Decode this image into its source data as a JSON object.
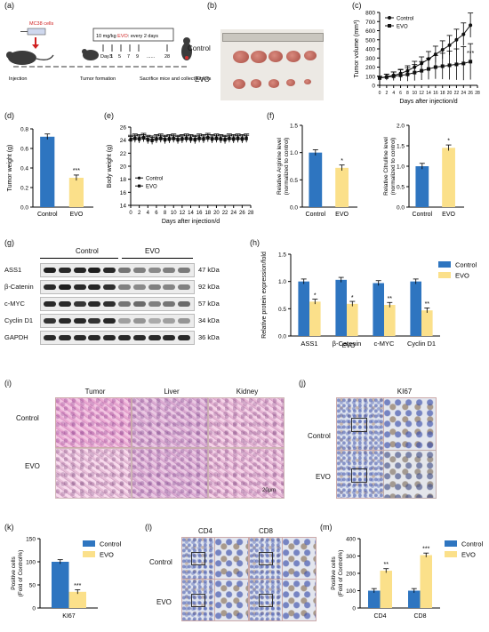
{
  "panel_labels": {
    "a": "(a)",
    "b": "(b)",
    "c": "(c)",
    "d": "(d)",
    "e": "(e)",
    "f": "(f)",
    "g": "(g)",
    "h": "(h)",
    "i": "(i)",
    "j": "(j)",
    "k": "(k)",
    "l": "(l)",
    "m": "(m)"
  },
  "schematic": {
    "cell_label": "MC38 cells",
    "dose_text_pre": "10 mg/kg",
    "dose_text_evo": "EVO",
    "dose_text_post": ": every 2 days",
    "days": [
      "Day 1",
      "3",
      "5",
      "7",
      "9",
      "......",
      "28"
    ],
    "injection": "Injection",
    "tumor_formation": "Tumor formation",
    "sacrifice": "Sacrifice mice and collect tumors"
  },
  "tumor_photo": {
    "control": "Control",
    "evo": "EVO"
  },
  "western": {
    "groups": [
      "Control",
      "EVO"
    ],
    "proteins": [
      "ASS1",
      "β-Catenin",
      "c-MYC",
      "Cyclin D1",
      "GAPDH"
    ],
    "sizes": [
      "47 kDa",
      "92 kDa",
      "57 kDa",
      "34 kDa",
      "36 kDa"
    ]
  },
  "histology": {
    "columns": [
      "Tumor",
      "Liver",
      "Kidney"
    ],
    "rows": [
      "Control",
      "EVO"
    ],
    "scale": "20μm"
  },
  "ki67_ihc": {
    "title": "KI67",
    "rows": [
      "Control",
      "EVO"
    ]
  },
  "cd_ihc": {
    "columns": [
      "CD4",
      "CD8"
    ],
    "rows": [
      "Control",
      "EVO"
    ]
  },
  "colors": {
    "control": "#2e75c0",
    "evo": "#fbe08a"
  },
  "chart_data": [
    {
      "id": "c",
      "type": "line",
      "xlabel": "Days after injection/d",
      "ylabel": "Tumor volume (mm³)",
      "x": [
        0,
        2,
        4,
        6,
        8,
        10,
        12,
        14,
        16,
        18,
        20,
        22,
        24,
        26
      ],
      "xticks": [
        0,
        2,
        4,
        6,
        8,
        10,
        12,
        14,
        16,
        18,
        20,
        22,
        24,
        26,
        28
      ],
      "xlim": [
        0,
        28
      ],
      "ylim": [
        0,
        800
      ],
      "yticks": [
        0,
        100,
        200,
        300,
        400,
        500,
        600,
        700,
        800
      ],
      "series": [
        {
          "name": "Control",
          "values": [
            80,
            95,
            110,
            130,
            160,
            200,
            240,
            290,
            340,
            390,
            440,
            500,
            560,
            660
          ]
        },
        {
          "name": "EVO",
          "values": [
            80,
            90,
            100,
            110,
            120,
            140,
            160,
            180,
            200,
            210,
            220,
            230,
            240,
            260
          ]
        }
      ],
      "annotation": "***"
    },
    {
      "id": "d",
      "type": "bar",
      "categories": [
        "Control",
        "EVO"
      ],
      "values": [
        0.72,
        0.3
      ],
      "ylabel": "Tumor weight (g)",
      "ylim": [
        0,
        0.8
      ],
      "yticks": [
        "0.0",
        "0.2",
        "0.4",
        "0.6",
        "0.8"
      ],
      "annotation": "***"
    },
    {
      "id": "e",
      "type": "line",
      "xlabel": "Days after injection/d",
      "ylabel": "Body weight (g)",
      "x": [
        0,
        1,
        2,
        3,
        4,
        5,
        6,
        7,
        8,
        9,
        10,
        11,
        12,
        13,
        14,
        15,
        16,
        17,
        18,
        19,
        20,
        21,
        22,
        23,
        24,
        25,
        26,
        27
      ],
      "xticks": [
        0,
        2,
        4,
        6,
        8,
        10,
        12,
        14,
        16,
        18,
        20,
        22,
        24,
        26,
        28
      ],
      "ylim": [
        14,
        26
      ],
      "yticks": [
        14,
        16,
        18,
        20,
        22,
        24,
        26
      ],
      "series": [
        {
          "name": "Control",
          "values": [
            24.2,
            24.4,
            24.3,
            24.5,
            24.2,
            24.1,
            24.3,
            24.4,
            24.2,
            24.3,
            24.4,
            24.2,
            24.3,
            24.4,
            24.3,
            24.2,
            24.4,
            24.3,
            24.5,
            24.3,
            24.4,
            24.3,
            24.2,
            24.4,
            24.3,
            24.4,
            24.3,
            24.4
          ]
        },
        {
          "name": "EVO",
          "values": [
            24.0,
            24.2,
            24.1,
            24.3,
            24.0,
            23.9,
            24.1,
            24.2,
            24.0,
            24.1,
            24.2,
            24.0,
            24.1,
            24.2,
            24.1,
            24.0,
            24.2,
            24.1,
            24.3,
            24.1,
            24.2,
            24.1,
            24.0,
            24.2,
            24.1,
            24.2,
            24.1,
            24.2
          ]
        }
      ]
    },
    {
      "id": "f1",
      "type": "bar",
      "categories": [
        "Control",
        "EVO"
      ],
      "values": [
        1.0,
        0.72
      ],
      "ylabel": "Relative Arginine level (normalized to control)",
      "ylim": [
        0,
        1.5
      ],
      "yticks": [
        "0.0",
        "0.5",
        "1.0",
        "1.5"
      ],
      "annotation": "*"
    },
    {
      "id": "f2",
      "type": "bar",
      "categories": [
        "Control",
        "EVO"
      ],
      "values": [
        1.0,
        1.45
      ],
      "ylabel": "Relative Citrulline level (normalized to control)",
      "ylim": [
        0,
        2.0
      ],
      "yticks": [
        "0.0",
        "0.5",
        "1.0",
        "1.5",
        "2.0"
      ],
      "annotation": "*"
    },
    {
      "id": "h",
      "type": "bar",
      "categories": [
        "ASS1",
        "β-Catenin",
        "c-MYC",
        "Cyclin D1"
      ],
      "ylabel": "Relative protein expression/fold",
      "ylim": [
        0,
        1.5
      ],
      "yticks": [
        "0.0",
        "0.5",
        "1.0",
        "1.5"
      ],
      "series": [
        {
          "name": "Control",
          "values": [
            1.0,
            1.03,
            0.97,
            1.0
          ]
        },
        {
          "name": "EVO",
          "values": [
            0.63,
            0.59,
            0.57,
            0.47
          ]
        }
      ],
      "annotations": [
        "*",
        "*",
        "**",
        "**"
      ],
      "overlay_text": "EVO"
    },
    {
      "id": "k",
      "type": "bar",
      "categories": [
        "KI67"
      ],
      "ylabel": "Positive cells (Fold of Control%)",
      "ylim": [
        0,
        150
      ],
      "yticks": [
        0,
        50,
        100,
        150
      ],
      "series": [
        {
          "name": "Control",
          "values": [
            100
          ]
        },
        {
          "name": "EVO",
          "values": [
            35
          ]
        }
      ],
      "annotations": [
        "***"
      ]
    },
    {
      "id": "m",
      "type": "bar",
      "categories": [
        "CD4",
        "CD8"
      ],
      "ylabel": "Positive cells (Fold of Control%)",
      "ylim": [
        0,
        400
      ],
      "yticks": [
        0,
        100,
        200,
        300,
        400
      ],
      "series": [
        {
          "name": "Control",
          "values": [
            100,
            100
          ]
        },
        {
          "name": "EVO",
          "values": [
            215,
            305
          ]
        }
      ],
      "annotations": [
        "**",
        "***"
      ]
    }
  ]
}
